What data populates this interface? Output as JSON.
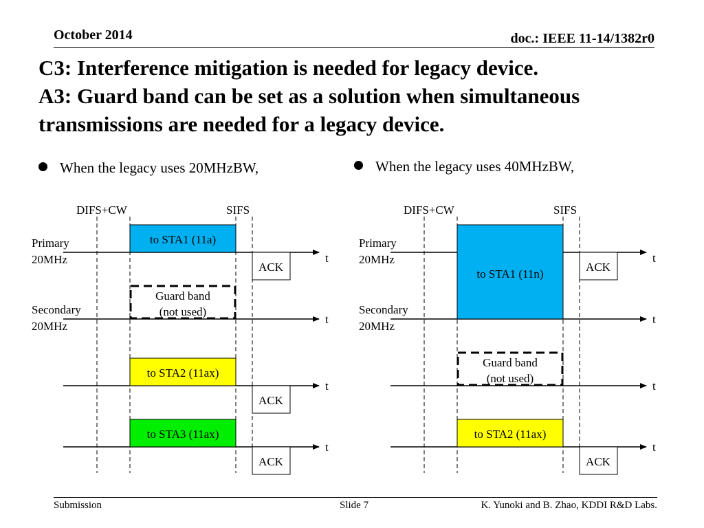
{
  "header": {
    "date": "October 2014",
    "doc": "doc.: IEEE 11-14/1382r0"
  },
  "title": {
    "line1": "C3: Interference mitigation is needed for legacy device.",
    "line2": "A3: Guard band can be set as a solution when simultaneous",
    "line3": "transmissions are needed for a legacy device."
  },
  "bullets": {
    "left": "When the legacy uses 20MHzBW,",
    "right": "When the legacy uses 40MHzBW,"
  },
  "diagram": {
    "colors": {
      "blue": "#00b0f0",
      "yellow": "#ffff00",
      "green": "#00ee00",
      "line": "#000000"
    },
    "left": {
      "difs_label": "DIFS+CW",
      "sifs_label": "SIFS",
      "primary_label_1": "Primary",
      "primary_label_2": "20MHz",
      "secondary_label_1": "Secondary",
      "secondary_label_2": "20MHz",
      "sta1_label": "to STA1 (11a)",
      "guard_label_1": "Guard band",
      "guard_label_2": "(not used)",
      "sta2_label": "to STA2 (11ax)",
      "sta3_label": "to STA3 (11ax)",
      "ack_label": "ACK",
      "time_label": "t"
    },
    "right": {
      "difs_label": "DIFS+CW",
      "sifs_label": "SIFS",
      "primary_label_1": "Primary",
      "primary_label_2": "20MHz",
      "secondary_label_1": "Secondary",
      "secondary_label_2": "20MHz",
      "sta1_label": "to STA1 (11n)",
      "guard_label_1": "Guard band",
      "guard_label_2": "(not used)",
      "sta2_label": "to STA2 (11ax)",
      "ack_label": "ACK",
      "time_label": "t"
    }
  },
  "footer": {
    "left": "Submission",
    "middle": "Slide 7",
    "right": "K. Yunoki and B. Zhao, KDDI R&D Labs."
  }
}
